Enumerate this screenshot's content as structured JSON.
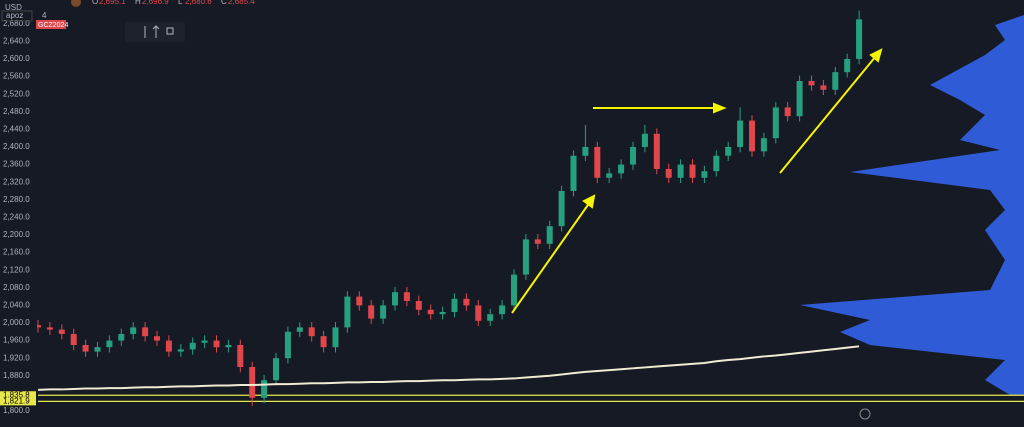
{
  "header": {
    "currency": "USD",
    "indicator": "apoz",
    "symbol": "GCZ2024",
    "count": "4",
    "ohlc": [
      {
        "key": "O",
        "val": "2,695.1"
      },
      {
        "key": "H",
        "val": "2,696.9"
      },
      {
        "key": "L",
        "val": "2,680.6"
      },
      {
        "key": "C",
        "val": "2,685.4"
      }
    ]
  },
  "chart_data": {
    "type": "candlestick",
    "up_color": "#26a17f",
    "down_color": "#e0474c",
    "ma_color": "#f2ead2",
    "grid": false,
    "ylim": [
      1775,
      2734
    ],
    "yticks": [
      {
        "value": 1800,
        "label": "1,800.0"
      },
      {
        "value": 1880,
        "label": "1,880.0"
      },
      {
        "value": 1920,
        "label": "1,920.0"
      },
      {
        "value": 1960,
        "label": "1,960.0"
      },
      {
        "value": 2000,
        "label": "2,000.0"
      },
      {
        "value": 2040,
        "label": "2,040.0"
      },
      {
        "value": 2080,
        "label": "2,080.0"
      },
      {
        "value": 2120,
        "label": "2,120.0"
      },
      {
        "value": 2160,
        "label": "2,160.0"
      },
      {
        "value": 2200,
        "label": "2,200.0"
      },
      {
        "value": 2240,
        "label": "2,240.0"
      },
      {
        "value": 2280,
        "label": "2,280.0"
      },
      {
        "value": 2320,
        "label": "2,320.0"
      },
      {
        "value": 2360,
        "label": "2,360.0"
      },
      {
        "value": 2400,
        "label": "2,400.0"
      },
      {
        "value": 2440,
        "label": "2,440.0"
      },
      {
        "value": 2480,
        "label": "2,480.0"
      },
      {
        "value": 2520,
        "label": "2,520.0"
      },
      {
        "value": 2560,
        "label": "2,560.0"
      },
      {
        "value": 2600,
        "label": "2,600.0"
      },
      {
        "value": 2640,
        "label": "2,640.0"
      },
      {
        "value": 2680,
        "label": "2,680.0"
      }
    ],
    "hlines": [
      {
        "value": 1835.8,
        "label": "1,835.8",
        "color": "#e8e84a"
      },
      {
        "value": 1821.9,
        "label": "1,821.9",
        "color": "#e8e84a"
      }
    ],
    "open": [
      1995,
      1990,
      1985,
      1975,
      1950,
      1935,
      1945,
      1960,
      1975,
      1990,
      1970,
      1960,
      1935,
      1940,
      1955,
      1960,
      1945,
      1950,
      1900,
      1830,
      1870,
      1920,
      1980,
      1990,
      1970,
      1945,
      1990,
      2060,
      2040,
      2010,
      2040,
      2070,
      2050,
      2030,
      2020,
      2025,
      2055,
      2040,
      2005,
      2020,
      2040,
      2110,
      2190,
      2180,
      2220,
      2300,
      2380,
      2400,
      2330,
      2340,
      2360,
      2400,
      2430,
      2350,
      2330,
      2360,
      2330,
      2345,
      2380,
      2400,
      2460,
      2390,
      2420,
      2490,
      2470,
      2550,
      2540,
      2530,
      2570,
      2600
    ],
    "high": [
      2007,
      2002,
      1997,
      1987,
      1962,
      1957,
      1972,
      1987,
      2002,
      2002,
      1982,
      1972,
      1952,
      1967,
      1972,
      1972,
      1962,
      1962,
      1912,
      1882,
      1932,
      1992,
      2002,
      2002,
      1982,
      2002,
      2072,
      2072,
      2052,
      2052,
      2082,
      2082,
      2062,
      2042,
      2037,
      2067,
      2067,
      2052,
      2032,
      2052,
      2122,
      2202,
      2202,
      2232,
      2312,
      2392,
      2450,
      2412,
      2352,
      2372,
      2412,
      2450,
      2442,
      2362,
      2372,
      2372,
      2357,
      2392,
      2412,
      2490,
      2472,
      2432,
      2502,
      2502,
      2562,
      2562,
      2552,
      2582,
      2612,
      2710
    ],
    "low": [
      1978,
      1973,
      1963,
      1938,
      1923,
      1923,
      1933,
      1948,
      1963,
      1958,
      1948,
      1923,
      1923,
      1928,
      1943,
      1933,
      1933,
      1888,
      1812,
      1818,
      1858,
      1908,
      1968,
      1958,
      1933,
      1933,
      1978,
      2028,
      1998,
      1998,
      2028,
      2038,
      2018,
      2008,
      2008,
      2013,
      2028,
      1993,
      1993,
      2008,
      2028,
      2098,
      2168,
      2168,
      2208,
      2288,
      2368,
      2318,
      2318,
      2328,
      2348,
      2388,
      2338,
      2318,
      2318,
      2318,
      2318,
      2333,
      2368,
      2388,
      2378,
      2378,
      2408,
      2458,
      2458,
      2528,
      2518,
      2518,
      2558,
      2588
    ],
    "close": [
      1990,
      1985,
      1975,
      1950,
      1935,
      1945,
      1960,
      1975,
      1990,
      1970,
      1960,
      1935,
      1940,
      1955,
      1960,
      1945,
      1950,
      1900,
      1830,
      1870,
      1920,
      1980,
      1990,
      1970,
      1945,
      1990,
      2060,
      2040,
      2010,
      2040,
      2070,
      2050,
      2030,
      2020,
      2025,
      2055,
      2040,
      2005,
      2020,
      2040,
      2110,
      2190,
      2180,
      2220,
      2300,
      2380,
      2400,
      2330,
      2340,
      2360,
      2400,
      2430,
      2350,
      2330,
      2360,
      2330,
      2345,
      2380,
      2400,
      2460,
      2390,
      2420,
      2490,
      2470,
      2550,
      2540,
      2530,
      2570,
      2600,
      2690
    ],
    "ma": [
      1848,
      1849,
      1849,
      1850,
      1851,
      1851,
      1852,
      1852,
      1853,
      1854,
      1854,
      1855,
      1856,
      1856,
      1857,
      1858,
      1858,
      1859,
      1859,
      1860,
      1861,
      1861,
      1862,
      1863,
      1863,
      1864,
      1865,
      1865,
      1866,
      1866,
      1867,
      1868,
      1868,
      1869,
      1870,
      1870,
      1871,
      1872,
      1872,
      1873,
      1874,
      1876,
      1878,
      1880,
      1883,
      1886,
      1889,
      1891,
      1893,
      1895,
      1897,
      1899,
      1901,
      1903,
      1905,
      1907,
      1909,
      1913,
      1916,
      1918,
      1921,
      1924,
      1926,
      1929,
      1932,
      1935,
      1938,
      1941,
      1944,
      1947
    ]
  }
}
